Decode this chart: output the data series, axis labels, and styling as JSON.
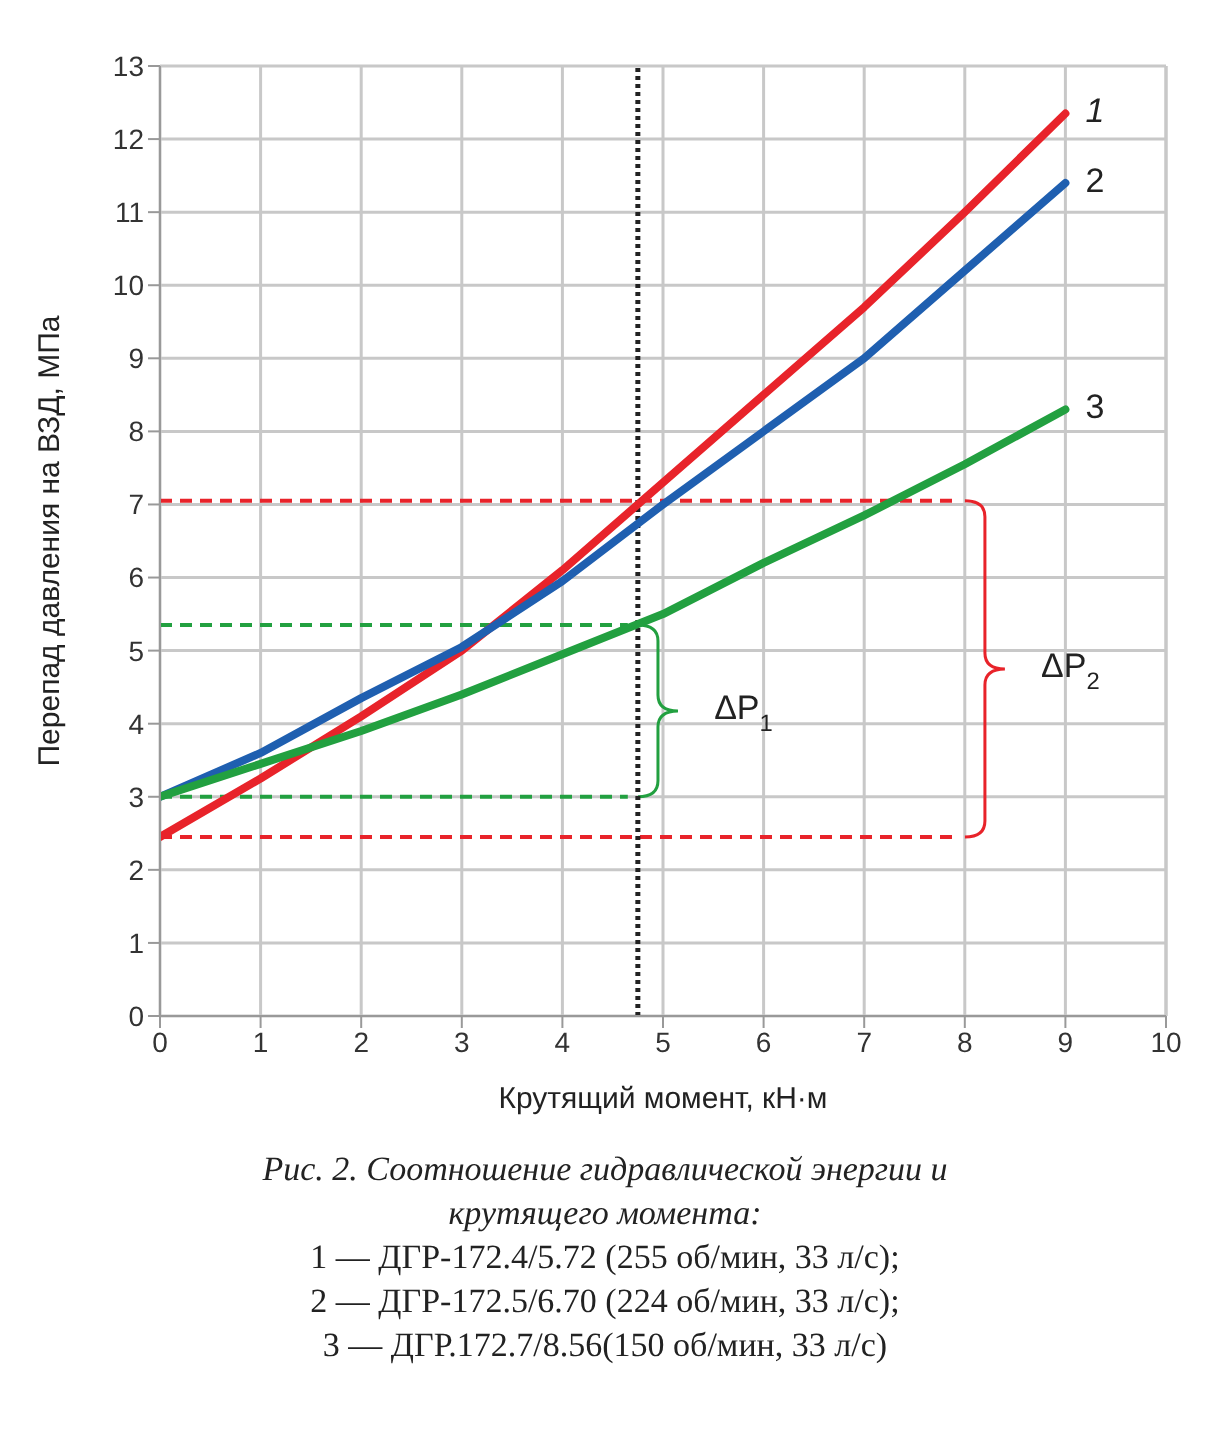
{
  "chart_data": {
    "type": "line",
    "xlabel": "Крутящий момент, кН·м",
    "ylabel": "Перепад давления на ВЗД, МПа",
    "x": [
      0,
      1,
      2,
      3,
      4,
      5,
      6,
      7,
      8,
      9
    ],
    "series": [
      {
        "name": "1",
        "color": "#e8232a",
        "values": [
          2.45,
          3.25,
          4.1,
          5.0,
          6.1,
          7.3,
          8.5,
          9.7,
          11.0,
          12.35
        ]
      },
      {
        "name": "2",
        "color": "#1f5fb0",
        "values": [
          3.0,
          3.6,
          4.35,
          5.05,
          5.95,
          7.0,
          8.0,
          9.0,
          10.2,
          11.4
        ]
      },
      {
        "name": "3",
        "color": "#22a040",
        "values": [
          3.0,
          3.45,
          3.9,
          4.4,
          4.95,
          5.5,
          6.2,
          6.85,
          7.55,
          8.3
        ]
      }
    ],
    "xlim": [
      0,
      10
    ],
    "xticks": [
      0,
      1,
      2,
      3,
      4,
      5,
      6,
      7,
      8,
      9,
      10
    ],
    "ylim": [
      0,
      13
    ],
    "yticks": [
      0,
      1,
      2,
      3,
      4,
      5,
      6,
      7,
      8,
      9,
      10,
      11,
      12,
      13
    ],
    "ref_lines": [
      {
        "axis": "y",
        "value": 7.05,
        "color": "#e8232a",
        "line_style": "dashed"
      },
      {
        "axis": "y",
        "value": 5.35,
        "color": "#22a040",
        "line_style": "dashed"
      },
      {
        "axis": "y",
        "value": 3.0,
        "color": "#22a040",
        "line_style": "dashed"
      },
      {
        "axis": "y",
        "value": 2.45,
        "color": "#e8232a",
        "line_style": "dashed"
      },
      {
        "axis": "x",
        "value": 4.75,
        "color": "#222222",
        "line_style": "dotted"
      }
    ],
    "annotations": [
      "ΔP$_{1}$",
      "ΔP$_{2}$",
      "Рис. 2. Соотношение гидравлической энергии и крутящего момента:",
      "1 — ДГР-172.4/5.72 (255 об/мин, 33 л/с);",
      "2 — ДГР-172.5/6.70 (224 об/мин, 33 л/с);",
      "3 — ДГР.172.7/8.56(150 об/мин, 33 л/с)"
    ],
    "grid": true,
    "marker": "none",
    "line_style": "solid"
  }
}
